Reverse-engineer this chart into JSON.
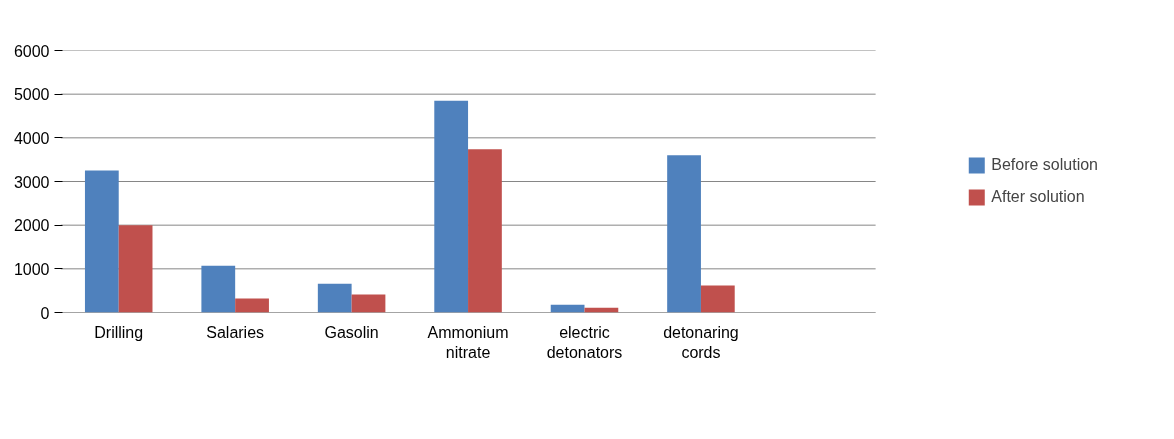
{
  "chart_data": {
    "type": "bar",
    "categories": [
      "Drilling",
      "Salaries",
      "Gasolin",
      "Ammonium\nnitrate",
      "electric\ndetonators",
      "detonaring\ncords",
      null
    ],
    "series": [
      {
        "name": "Before solution",
        "color": "#4f81bd",
        "values": [
          3250,
          1070,
          660,
          4850,
          180,
          3600,
          null
        ]
      },
      {
        "name": "After solution",
        "color": "#c0504d",
        "values": [
          2000,
          320,
          410,
          3740,
          110,
          620,
          null
        ]
      }
    ],
    "ylim": [
      0,
      6000
    ],
    "yticks": [
      0,
      1000,
      2000,
      3000,
      4000,
      5000,
      6000
    ],
    "grid": "y",
    "legend": "right"
  }
}
